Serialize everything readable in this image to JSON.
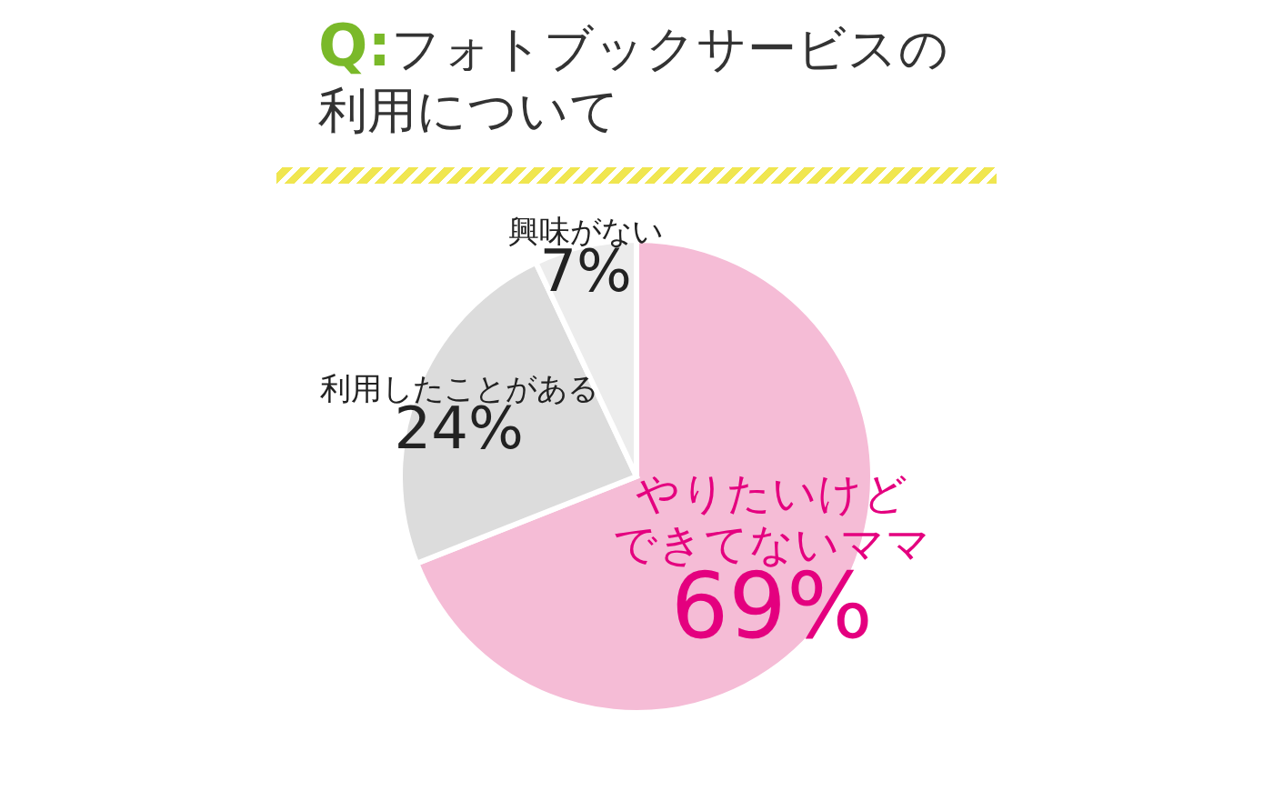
{
  "chart_data": {
    "type": "pie",
    "title": "Q:フォトブックサービスの利用について",
    "categories": [
      "やりたいけどできてないママ",
      "利用したことがある",
      "興味がない"
    ],
    "values": [
      69,
      24,
      7
    ],
    "colors": [
      "#f5bcd6",
      "#dcdcdc",
      "#ececec"
    ],
    "value_labels": [
      "69%",
      "24%",
      "7%"
    ]
  }
}
